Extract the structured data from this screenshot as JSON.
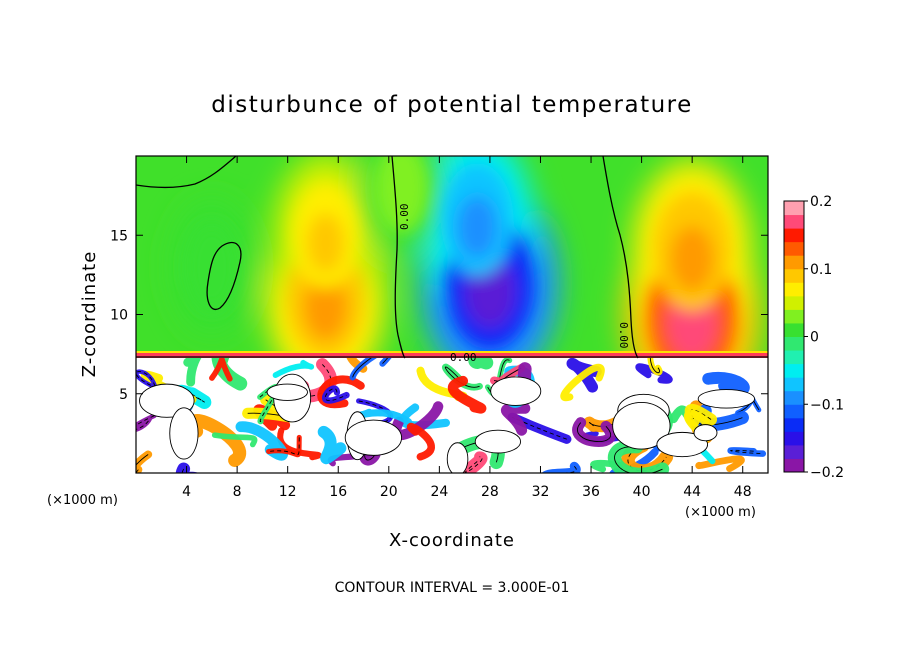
{
  "chart_data": {
    "type": "heatmap",
    "title": "disturbunce of potential temperature",
    "xlabel": "X-coordinate",
    "ylabel": "Z-coordinate",
    "x_unit_label": "(×1000 m)",
    "x_unit_label_right": "(×1000 m)",
    "xlim": [
      0,
      50
    ],
    "ylim": [
      0,
      20
    ],
    "x_ticks": [
      4,
      8,
      12,
      16,
      20,
      24,
      28,
      32,
      36,
      40,
      44,
      48
    ],
    "y_ticks": [
      5,
      10,
      15
    ],
    "footer": "CONTOUR INTERVAL = 3.000E-01",
    "colorbar": {
      "range": [
        -0.2,
        0.2
      ],
      "tick_labels": [
        "0.2",
        "0.1",
        "0",
        "−0.1",
        "−0.2"
      ],
      "tick_values": [
        0.2,
        0.1,
        0,
        -0.1,
        -0.2
      ],
      "colors": [
        "#8a16a6",
        "#5a1fd6",
        "#2a10e8",
        "#0a2cf6",
        "#1060ff",
        "#1a90ff",
        "#10c4ff",
        "#00eef0",
        "#20f0b0",
        "#30e870",
        "#38e030",
        "#80f020",
        "#d0f000",
        "#ffee00",
        "#ffc800",
        "#ff9a00",
        "#ff5a00",
        "#ff1a00",
        "#ff4a78",
        "#ffa0b0"
      ]
    },
    "contour_labels": [
      "0.00",
      "0.00",
      "0.00"
    ],
    "field_blobs": [
      {
        "x": 6,
        "z": 13,
        "value": 0.02
      },
      {
        "x": 15,
        "z": 11,
        "value": 0.12
      },
      {
        "x": 15,
        "z": 15,
        "value": 0.08
      },
      {
        "x": 28,
        "z": 12,
        "value": -0.17
      },
      {
        "x": 27,
        "z": 16,
        "value": -0.1
      },
      {
        "x": 44,
        "z": 10,
        "value": 0.17
      },
      {
        "x": 44,
        "z": 14,
        "value": 0.12
      },
      {
        "x": 21,
        "z": 18,
        "value": 0.03
      }
    ],
    "interface_z": 7.3
  }
}
